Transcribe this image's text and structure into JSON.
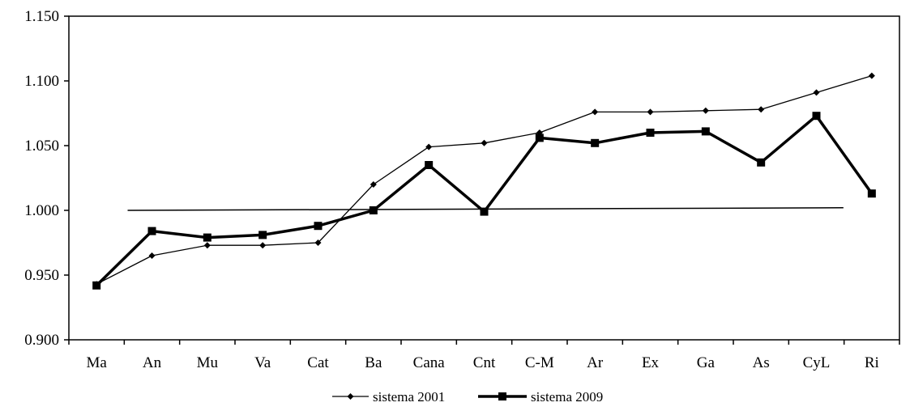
{
  "chart_data": {
    "type": "line",
    "title": "",
    "xlabel": "",
    "ylabel": "",
    "categories": [
      "Ma",
      "An",
      "Mu",
      "Va",
      "Cat",
      "Ba",
      "Cana",
      "Cnt",
      "C-M",
      "Ar",
      "Ex",
      "Ga",
      "As",
      "CyL",
      "Ri"
    ],
    "ylim": [
      0.9,
      1.15
    ],
    "yticks": [
      0.9,
      0.95,
      1.0,
      1.05,
      1.1,
      1.15
    ],
    "ytick_labels": [
      "0.900",
      "0.950",
      "1.000",
      "1.050",
      "1.100",
      "1.150"
    ],
    "grid": false,
    "legend_position": "bottom-center",
    "series": [
      {
        "name": "sistema 2001",
        "marker": "diamond",
        "style": "thin",
        "values": [
          0.943,
          0.965,
          0.973,
          0.973,
          0.975,
          1.02,
          1.049,
          1.052,
          1.06,
          1.076,
          1.076,
          1.077,
          1.078,
          1.091,
          1.104
        ]
      },
      {
        "name": "sistema 2009",
        "marker": "square",
        "style": "thick",
        "values": [
          0.942,
          0.984,
          0.979,
          0.981,
          0.988,
          1.0,
          1.035,
          0.999,
          1.056,
          1.052,
          1.06,
          1.061,
          1.037,
          1.073,
          1.013
        ]
      }
    ],
    "reference_line": {
      "from": {
        "x": "An",
        "y": 1.0
      },
      "to": {
        "x": "Ri",
        "y": 1.002
      }
    },
    "colors": {
      "line": "#000000",
      "background": "#ffffff"
    }
  }
}
